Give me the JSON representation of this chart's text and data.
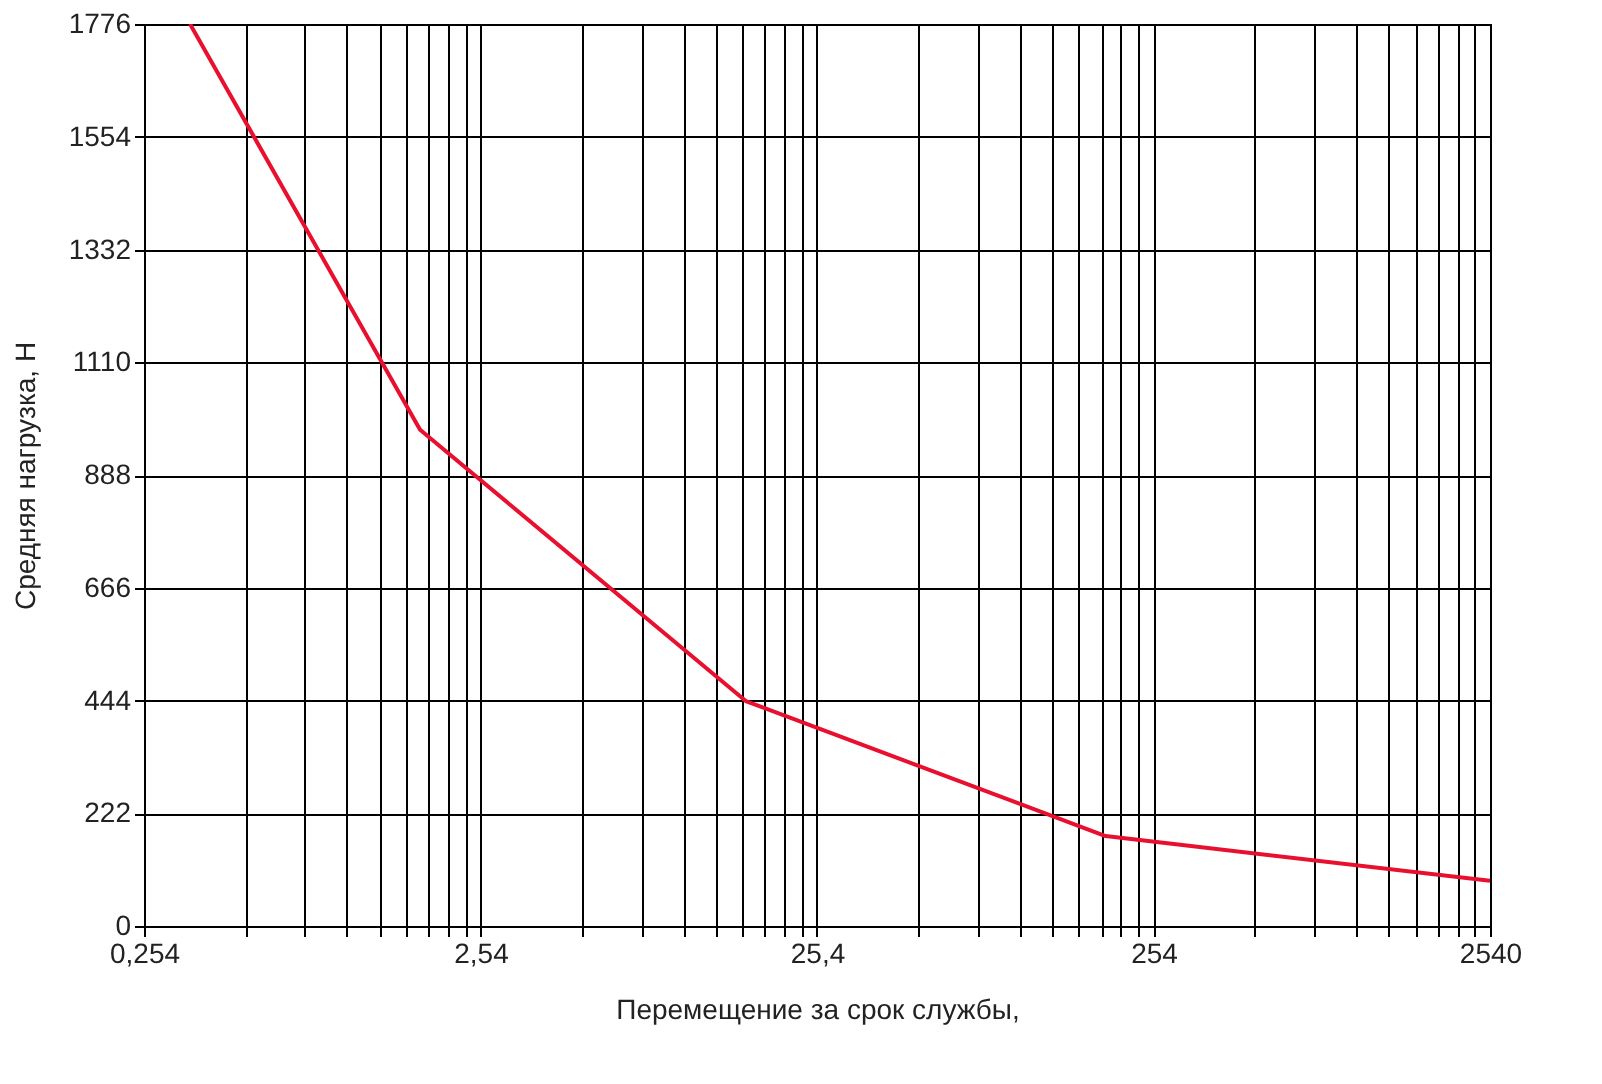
{
  "chart_data": {
    "type": "line",
    "xlabel": "Перемещение за срок службы,",
    "ylabel": "Средняя нагрузка, Н",
    "x": [
      0.348,
      1.68,
      15.6,
      183,
      2540
    ],
    "series": [
      {
        "color": "#e8102e",
        "values": [
          1776,
          977,
          443,
          177,
          89
        ]
      }
    ],
    "log": "x",
    "xlim": [
      0.254,
      2540
    ],
    "ylim": [
      0,
      1776
    ],
    "yticks": [
      0,
      222,
      444,
      666,
      888,
      1110,
      1332,
      1554,
      1776
    ],
    "xticks": [
      {
        "value": 0.254,
        "label": "0,254"
      },
      {
        "value": 0.508,
        "label": null
      },
      {
        "value": 0.762,
        "label": null
      },
      {
        "value": 1.016,
        "label": null
      },
      {
        "value": 1.27,
        "label": null
      },
      {
        "value": 1.524,
        "label": null
      },
      {
        "value": 1.778,
        "label": null
      },
      {
        "value": 2.032,
        "label": null
      },
      {
        "value": 2.286,
        "label": null
      },
      {
        "value": 2.54,
        "label": "2,54"
      },
      {
        "value": 5.08,
        "label": null
      },
      {
        "value": 7.62,
        "label": null
      },
      {
        "value": 10.16,
        "label": null
      },
      {
        "value": 12.7,
        "label": null
      },
      {
        "value": 15.24,
        "label": null
      },
      {
        "value": 17.78,
        "label": null
      },
      {
        "value": 20.32,
        "label": null
      },
      {
        "value": 22.86,
        "label": null
      },
      {
        "value": 25.4,
        "label": "25,4"
      },
      {
        "value": 50.8,
        "label": null
      },
      {
        "value": 76.2,
        "label": null
      },
      {
        "value": 101.6,
        "label": null
      },
      {
        "value": 127,
        "label": null
      },
      {
        "value": 152.4,
        "label": null
      },
      {
        "value": 177.8,
        "label": null
      },
      {
        "value": 203.2,
        "label": null
      },
      {
        "value": 228.6,
        "label": null
      },
      {
        "value": 254,
        "label": "254"
      },
      {
        "value": 508,
        "label": null
      },
      {
        "value": 762,
        "label": null
      },
      {
        "value": 1016,
        "label": null
      },
      {
        "value": 1270,
        "label": null
      },
      {
        "value": 1524,
        "label": null
      },
      {
        "value": 1778,
        "label": null
      },
      {
        "value": 2032,
        "label": null
      },
      {
        "value": 2286,
        "label": null
      },
      {
        "value": 2540,
        "label": "2540"
      }
    ],
    "grid": true,
    "marker": "none",
    "line_style": "solid"
  }
}
